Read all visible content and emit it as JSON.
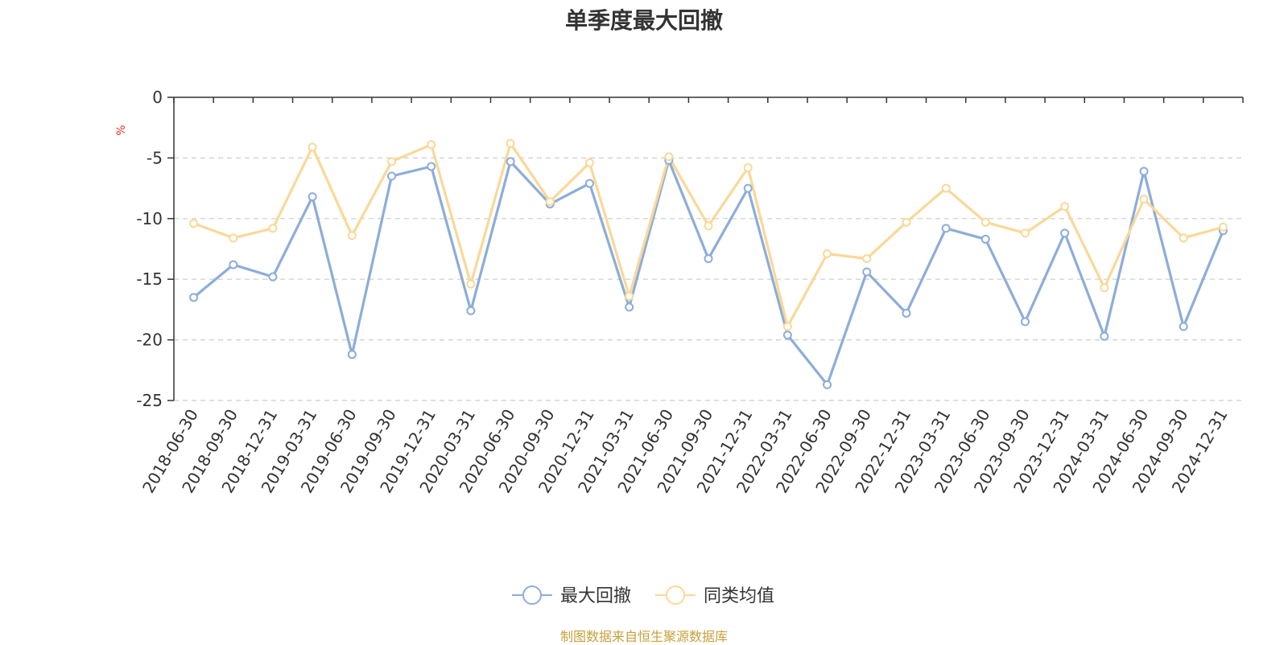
{
  "chart_data": {
    "type": "line",
    "title": "单季度最大回撤",
    "ylabel": "%",
    "ylim": [
      -25,
      0
    ],
    "yticks": [
      0,
      -5,
      -10,
      -15,
      -20,
      -25
    ],
    "grid": true,
    "legend_position": "bottom-center",
    "categories": [
      "2018-06-30",
      "2018-09-30",
      "2018-12-31",
      "2019-03-31",
      "2019-06-30",
      "2019-09-30",
      "2019-12-31",
      "2020-03-31",
      "2020-06-30",
      "2020-09-30",
      "2020-12-31",
      "2021-03-31",
      "2021-06-30",
      "2021-09-30",
      "2021-12-31",
      "2022-03-31",
      "2022-06-30",
      "2022-09-30",
      "2022-12-31",
      "2023-03-31",
      "2023-06-30",
      "2023-09-30",
      "2023-12-31",
      "2024-03-31",
      "2024-06-30",
      "2024-09-30",
      "2024-12-31"
    ],
    "series": [
      {
        "name": "最大回撤",
        "color": "#8cadd9",
        "values": [
          -16.5,
          -13.8,
          -14.8,
          -8.2,
          -21.2,
          -6.5,
          -5.7,
          -17.6,
          -5.3,
          -8.8,
          -7.1,
          -17.3,
          -5.2,
          -13.3,
          -7.5,
          -19.6,
          -23.7,
          -14.4,
          -17.8,
          -10.8,
          -11.7,
          -18.5,
          -11.2,
          -19.7,
          -6.1,
          -18.9,
          -11.0
        ]
      },
      {
        "name": "同类均值",
        "color": "#fad898",
        "values": [
          -10.4,
          -11.6,
          -10.8,
          -4.1,
          -11.4,
          -5.3,
          -3.9,
          -15.4,
          -3.8,
          -8.6,
          -5.4,
          -16.4,
          -4.9,
          -10.6,
          -5.8,
          -18.9,
          -12.9,
          -13.3,
          -10.3,
          -7.5,
          -10.3,
          -11.2,
          -9.0,
          -15.7,
          -8.4,
          -11.6,
          -10.7
        ]
      }
    ]
  },
  "source_note": "制图数据来自恒生聚源数据库"
}
